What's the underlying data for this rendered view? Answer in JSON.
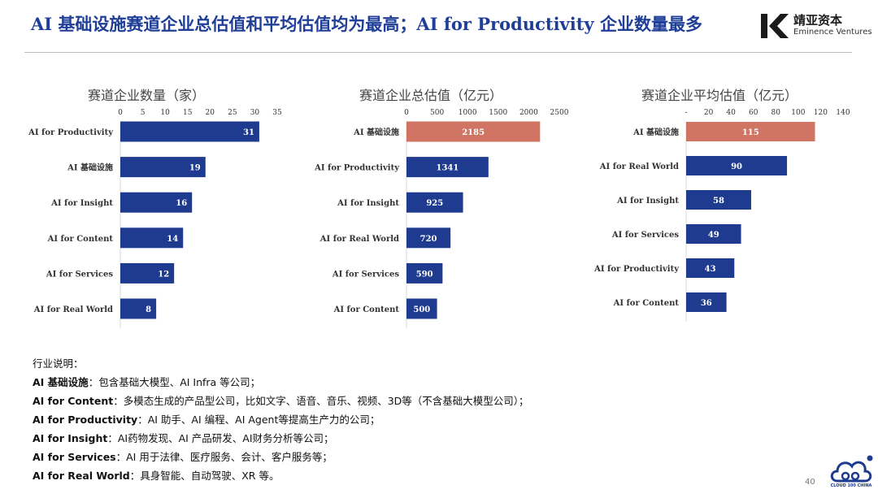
{
  "title": "AI 基础设施赛道企业总估值和平均估值均为最高；AI for Productivity 企业数量最多",
  "logo": {
    "cn": "靖亚资本",
    "en": "Eminence Ventures"
  },
  "colors": {
    "bar": "#1e3b8f",
    "highlight": "#d07563",
    "title": "#1f3e98"
  },
  "chart_data": [
    {
      "type": "bar",
      "orientation": "horizontal",
      "title": "赛道企业数量（家）",
      "categories": [
        "AI for Productivity",
        "AI 基础设施",
        "AI for Insight",
        "AI for Content",
        "AI for Services",
        "AI for Real World"
      ],
      "values": [
        31,
        19,
        16,
        14,
        12,
        8
      ],
      "xticks": [
        "0",
        "5",
        "10",
        "15",
        "20",
        "25",
        "30",
        "35"
      ],
      "xlim": [
        0,
        35
      ],
      "highlight_index": -1
    },
    {
      "type": "bar",
      "orientation": "horizontal",
      "title": "赛道企业总估值（亿元）",
      "categories": [
        "AI 基础设施",
        "AI for Productivity",
        "AI for Insight",
        "AI for Real World",
        "AI for Services",
        "AI for Content"
      ],
      "values": [
        2185,
        1341,
        925,
        720,
        590,
        500
      ],
      "xticks": [
        "0",
        "500",
        "1000",
        "1500",
        "2000",
        "2500"
      ],
      "xlim": [
        0,
        2500
      ],
      "highlight_index": 0
    },
    {
      "type": "bar",
      "orientation": "horizontal",
      "title": "赛道企业平均估值（亿元）",
      "categories": [
        "AI 基础设施",
        "AI for Real World",
        "AI for Insight",
        "AI for Services",
        "AI for Productivity",
        "AI for Content"
      ],
      "values": [
        115,
        90,
        58,
        49,
        43,
        36
      ],
      "xticks": [
        "-",
        "20",
        "40",
        "60",
        "80",
        "100",
        "120",
        "140"
      ],
      "xlim": [
        0,
        140
      ],
      "highlight_index": 0
    }
  ],
  "notes": {
    "heading": "行业说明：",
    "items": [
      {
        "label": "AI 基础设施",
        "text": "：包含基础大模型、AI Infra 等公司；"
      },
      {
        "label": "AI for Content",
        "text": "：多模态生成的产品型公司，比如文字、语音、音乐、视频、3D等（不含基础大模型公司）；"
      },
      {
        "label": "AI for Productivity",
        "text": "：AI 助手、AI 编程、AI Agent等提高生产力的公司；"
      },
      {
        "label": "AI for Insight",
        "text": "：AI药物发现、AI 产品研发、AI财务分析等公司；"
      },
      {
        "label": "AI for Services",
        "text": "：AI 用于法律、医疗服务、会计、客户服务等；"
      },
      {
        "label": "AI for Real World",
        "text": "：具身智能、自动驾驶、XR 等。"
      }
    ]
  },
  "footer": {
    "page_number": "40",
    "cloud_text": "CLOUD 100 CHINA"
  }
}
